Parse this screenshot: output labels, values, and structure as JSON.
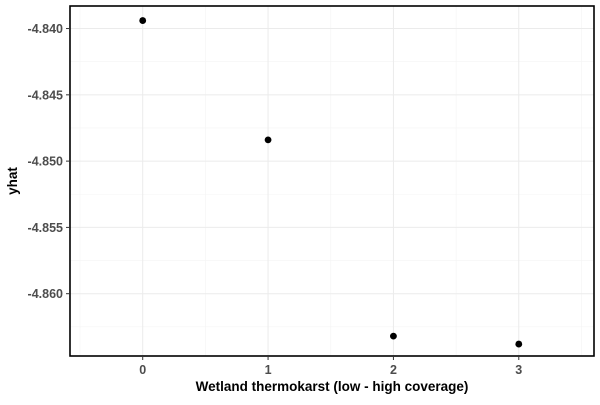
{
  "chart_data": {
    "type": "scatter",
    "title": "",
    "xlabel": "Wetland thermokarst (low - high coverage)",
    "ylabel": "yhat",
    "x": [
      0,
      1,
      2,
      3
    ],
    "y": [
      -4.8394,
      -4.8484,
      -4.8632,
      -4.8638
    ],
    "x_ticks": [
      "0",
      "1",
      "2",
      "3"
    ],
    "y_ticks": [
      "-4.840",
      "-4.845",
      "-4.850",
      "-4.855",
      "-4.860"
    ],
    "xlim": [
      -0.58,
      3.6
    ],
    "ylim": [
      -4.8647,
      -4.8383
    ],
    "grid": true,
    "legend": "none",
    "point_color": "#000000",
    "gridline_color": "#ebebeb"
  }
}
